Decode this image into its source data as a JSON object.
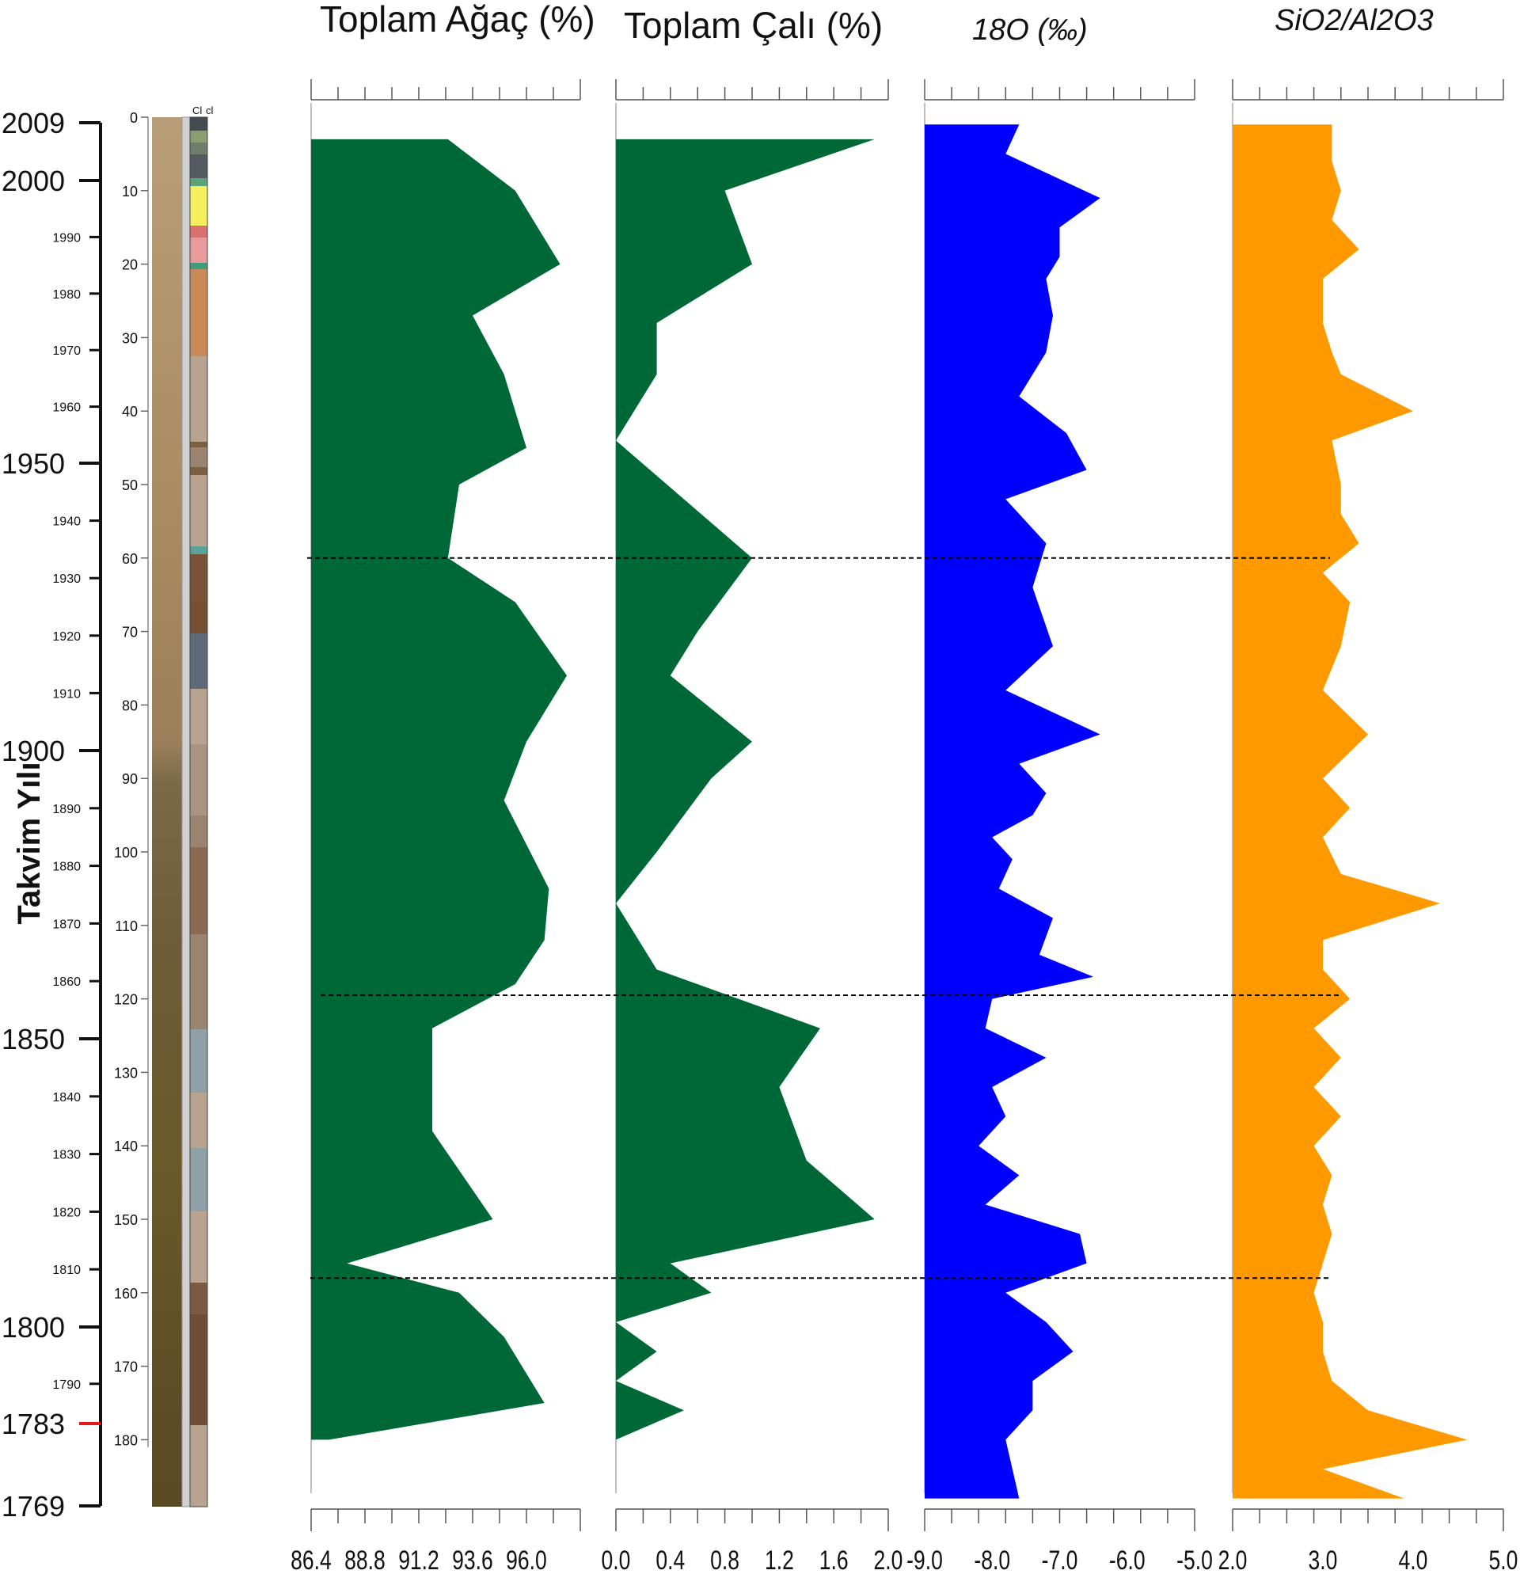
{
  "colors": {
    "tree": "#006837",
    "shrub": "#006837",
    "oxygen": "#0000ff",
    "silica": "#ff9900",
    "axis": "#555555",
    "dash": "#000000",
    "cal_marker": "#e31a1c"
  },
  "year_axis": {
    "title": "Takvim Yılı",
    "major": [
      2009,
      2000,
      1950,
      1900,
      1850,
      1800,
      1783,
      1769
    ],
    "minor": [
      1990,
      1980,
      1970,
      1960,
      1940,
      1930,
      1920,
      1910,
      1890,
      1880,
      1870,
      1860,
      1840,
      1830,
      1820,
      1810,
      1790
    ],
    "highlight": 1783
  },
  "depth_axis": {
    "ticks": [
      0,
      10,
      20,
      30,
      40,
      50,
      60,
      70,
      80,
      90,
      100,
      110,
      120,
      130,
      140,
      150,
      160,
      170,
      180
    ]
  },
  "core_header": [
    "Cl",
    "cl"
  ],
  "dashed_lines_depth": [
    60,
    119.5,
    158
  ],
  "chart_data": [
    {
      "type": "area",
      "title": "Toplam Ağaç (%)",
      "xlim": [
        86.4,
        98.4
      ],
      "xticks": [
        "86.4",
        "88.8",
        "91.2",
        "93.6",
        "96.0"
      ],
      "depth": [
        3,
        10,
        20,
        27,
        35,
        45,
        50,
        60,
        66,
        76,
        85,
        93,
        102,
        105,
        112,
        118,
        124,
        130,
        138,
        150,
        156,
        160,
        166,
        170,
        175,
        180
      ],
      "values": [
        92.5,
        95.5,
        97.5,
        93.6,
        95.0,
        96.0,
        93.0,
        92.5,
        95.5,
        97.8,
        96.0,
        95.0,
        96.5,
        97.0,
        96.8,
        95.5,
        91.8,
        91.8,
        91.8,
        94.5,
        88.0,
        93.0,
        95.0,
        95.8,
        96.8,
        87.2
      ]
    },
    {
      "type": "area",
      "title": "Toplam Çalı (%)",
      "xlim": [
        0.0,
        2.0
      ],
      "xticks": [
        "0.0",
        "0.4",
        "0.8",
        "1.2",
        "1.6",
        "2.0"
      ],
      "depth": [
        3,
        10,
        20,
        28,
        35,
        44,
        60,
        70,
        76,
        85,
        90,
        100,
        107,
        116,
        124,
        132,
        142,
        150,
        156,
        160,
        164,
        168,
        172,
        176,
        180
      ],
      "values": [
        1.9,
        0.8,
        1.0,
        0.3,
        0.3,
        0.0,
        1.0,
        0.6,
        0.4,
        1.0,
        0.7,
        0.3,
        0.0,
        0.3,
        1.5,
        1.2,
        1.4,
        1.9,
        0.4,
        0.7,
        0.0,
        0.3,
        0.0,
        0.5,
        0.0
      ]
    },
    {
      "type": "area",
      "title": "18O (‰)",
      "xlim": [
        -9.0,
        -5.0
      ],
      "xticks": [
        "-9.0",
        "-8.0",
        "-7.0",
        "-6.0",
        "-5.0"
      ],
      "depth": [
        1,
        5,
        11,
        15,
        19,
        22,
        27,
        32,
        38,
        43,
        48,
        52,
        58,
        64,
        72,
        78,
        84,
        88,
        92,
        95,
        98,
        101,
        105,
        109,
        114,
        117,
        120,
        124,
        128,
        132,
        136,
        140,
        144,
        148,
        152,
        156,
        160,
        164,
        168,
        172,
        176,
        180,
        184,
        188
      ],
      "values": [
        -7.6,
        -7.8,
        -6.4,
        -7.0,
        -7.0,
        -7.2,
        -7.1,
        -7.2,
        -7.6,
        -6.9,
        -6.6,
        -7.8,
        -7.2,
        -7.4,
        -7.1,
        -7.8,
        -6.4,
        -7.6,
        -7.2,
        -7.4,
        -8.0,
        -7.7,
        -7.9,
        -7.1,
        -7.3,
        -6.5,
        -8.0,
        -8.1,
        -7.2,
        -8.0,
        -7.8,
        -8.2,
        -7.6,
        -8.1,
        -6.7,
        -6.6,
        -7.8,
        -7.2,
        -6.8,
        -7.4,
        -7.4,
        -7.8,
        -7.7,
        -7.6
      ]
    },
    {
      "type": "area",
      "title": "SiO2/Al2O3",
      "xlim": [
        2.0,
        5.0
      ],
      "xticks": [
        "2.0",
        "3.0",
        "4.0",
        "5.0"
      ],
      "depth": [
        1,
        6,
        10,
        14,
        18,
        22,
        28,
        32,
        35,
        40,
        44,
        50,
        54,
        58,
        62,
        66,
        72,
        78,
        84,
        90,
        94,
        98,
        103,
        107,
        112,
        116,
        120,
        124,
        128,
        132,
        136,
        140,
        144,
        148,
        152,
        156,
        160,
        164,
        168,
        172,
        176,
        180,
        184,
        188
      ],
      "values": [
        3.1,
        3.1,
        3.2,
        3.1,
        3.4,
        3.0,
        3.0,
        3.1,
        3.2,
        4.0,
        3.1,
        3.2,
        3.2,
        3.4,
        3.0,
        3.3,
        3.2,
        3.0,
        3.5,
        3.0,
        3.3,
        3.0,
        3.2,
        4.3,
        3.0,
        3.0,
        3.3,
        2.9,
        3.2,
        2.9,
        3.2,
        2.9,
        3.1,
        3.0,
        3.1,
        3.0,
        2.9,
        3.0,
        3.0,
        3.1,
        3.5,
        4.6,
        3.0,
        3.9
      ]
    }
  ]
}
